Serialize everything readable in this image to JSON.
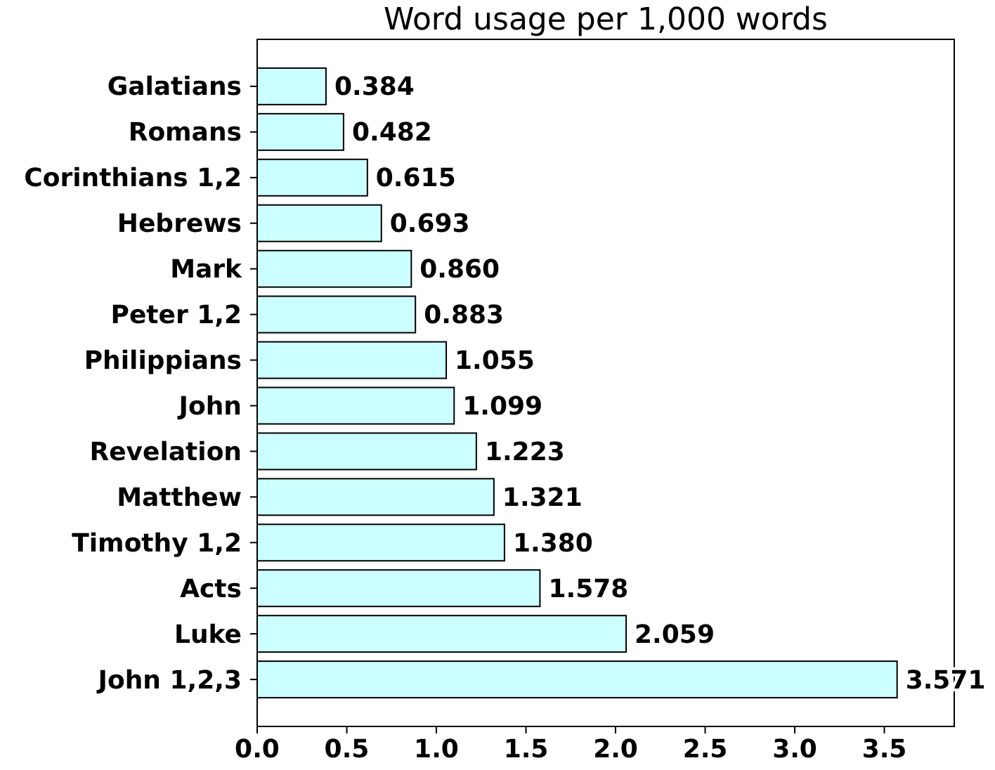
{
  "chart_data": {
    "type": "bar",
    "orientation": "horizontal",
    "title": "Word usage per 1,000 words",
    "categories": [
      "Galatians",
      "Romans",
      "Corinthians 1,2",
      "Hebrews",
      "Mark",
      "Peter 1,2",
      "Philippians",
      "John",
      "Revelation",
      "Matthew",
      "Timothy 1,2",
      "Acts",
      "Luke",
      "John 1,2,3"
    ],
    "values": [
      0.384,
      0.482,
      0.615,
      0.693,
      0.86,
      0.883,
      1.055,
      1.099,
      1.223,
      1.321,
      1.38,
      1.578,
      2.059,
      3.571
    ],
    "value_labels": [
      "0.384",
      "0.482",
      "0.615",
      "0.693",
      "0.860",
      "0.883",
      "1.055",
      "1.099",
      "1.223",
      "1.321",
      "1.380",
      "1.578",
      "2.059",
      "3.571"
    ],
    "color": "#ccffff",
    "xlim": [
      0,
      3.89
    ],
    "xticks": [
      {
        "value": 0,
        "label": "0.0"
      },
      {
        "value": 0.5,
        "label": "0.5"
      },
      {
        "value": 1,
        "label": "1.0"
      },
      {
        "value": 1.5,
        "label": "1.5"
      },
      {
        "value": 2,
        "label": "2.0"
      },
      {
        "value": 2.5,
        "label": "2.5"
      },
      {
        "value": 3,
        "label": "3.0"
      },
      {
        "value": 3.5,
        "label": "3.5"
      }
    ],
    "grid": false
  }
}
